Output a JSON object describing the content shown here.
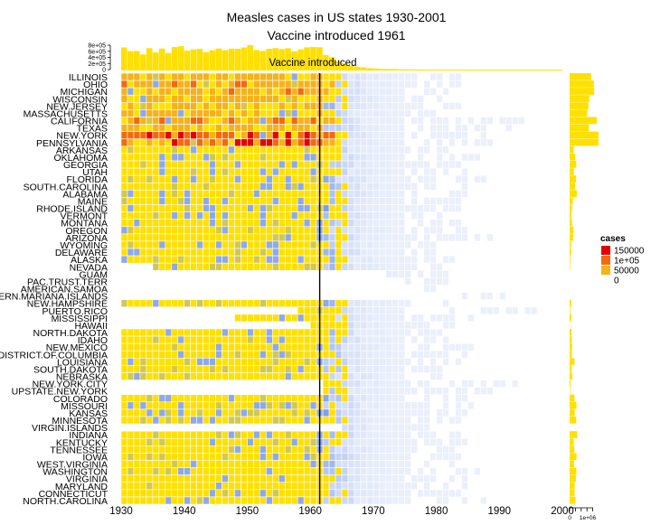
{
  "chart_data": {
    "type": "heatmap",
    "title": "Measles cases in US states 1930-2001",
    "subtitle": "Vaccine introduced 1961",
    "annotation": {
      "text": "Vaccine introduced",
      "year": 1961
    },
    "x_range": [
      1930,
      2000
    ],
    "x_ticks": [
      "1930",
      "1940",
      "1950",
      "1960",
      "1970",
      "1980",
      "1990",
      "2000"
    ],
    "states": [
      "ILLINOIS",
      "OHIO",
      "MICHIGAN",
      "WISCONSIN",
      "NEW.JERSEY",
      "MASSACHUSETTS",
      "CALIFORNIA",
      "TEXAS",
      "NEW.YORK",
      "PENNSYLVANIA",
      "ARKANSAS",
      "OKLAHOMA",
      "GEORGIA",
      "UTAH",
      "FLORIDA",
      "SOUTH.CAROLINA",
      "ALABAMA",
      "MAINE",
      "RHODE.ISLAND",
      "VERMONT",
      "MONTANA",
      "OREGON",
      "ARIZONA",
      "WYOMING",
      "DELAWARE",
      "ALASKA",
      "NEVADA",
      "GUAM",
      "PAC.TRUST.TERR",
      "AMERICAN.SAMOA",
      "NORTHERN.MARIANA.ISLANDS",
      "NEW.HAMPSHIRE",
      "PUERTO.RICO",
      "MISSISSIPPI",
      "HAWAII",
      "NORTH.DAKOTA",
      "IDAHO",
      "NEW.MEXICO",
      "DISTRICT.OF.COLUMBIA",
      "LOUISIANA",
      "SOUTH.DAKOTA",
      "NEBRASKA",
      "NEW.YORK.CITY",
      "UPSTATE.NEW.YORK",
      "COLORADO",
      "MISSOURI",
      "KANSAS",
      "MINNESOTA",
      "VIRGIN.ISLANDS",
      "INDIANA",
      "KENTUCKY",
      "TENNESSEE",
      "IOWA",
      "WEST.VIRGINIA",
      "WASHINGTON",
      "VIRGINIA",
      "MARYLAND",
      "CONNECTICUT",
      "NORTH.CAROLINA"
    ],
    "state_profiles": [
      {
        "start": 1930,
        "end": 1983,
        "peak": 44000
      },
      {
        "start": 1930,
        "end": 1983,
        "peak": 52000
      },
      {
        "start": 1930,
        "end": 1982,
        "peak": 50000
      },
      {
        "start": 1930,
        "end": 1981,
        "peak": 42000
      },
      {
        "start": 1930,
        "end": 1983,
        "peak": 40000
      },
      {
        "start": 1930,
        "end": 1983,
        "peak": 36000
      },
      {
        "start": 1930,
        "end": 1993,
        "peak": 55000
      },
      {
        "start": 1930,
        "end": 1993,
        "peak": 45000
      },
      {
        "start": 1930,
        "end": 1988,
        "peak": 95000
      },
      {
        "start": 1930,
        "end": 1988,
        "peak": 88000
      },
      {
        "start": 1930,
        "end": 1981,
        "peak": 9000
      },
      {
        "start": 1930,
        "end": 1987,
        "peak": 12000
      },
      {
        "start": 1930,
        "end": 1985,
        "peak": 15000
      },
      {
        "start": 1930,
        "end": 1984,
        "peak": 9000
      },
      {
        "start": 1930,
        "end": 1987,
        "peak": 14000
      },
      {
        "start": 1930,
        "end": 1984,
        "peak": 12000
      },
      {
        "start": 1930,
        "end": 1985,
        "peak": 15000
      },
      {
        "start": 1930,
        "end": 1984,
        "peak": 6000
      },
      {
        "start": 1930,
        "end": 1983,
        "peak": 5000
      },
      {
        "start": 1930,
        "end": 1982,
        "peak": 4000
      },
      {
        "start": 1930,
        "end": 1983,
        "peak": 5000
      },
      {
        "start": 1930,
        "end": 1985,
        "peak": 9000
      },
      {
        "start": 1930,
        "end": 1988,
        "peak": 8000
      },
      {
        "start": 1930,
        "end": 1981,
        "peak": 2500
      },
      {
        "start": 1930,
        "end": 1980,
        "peak": 3000
      },
      {
        "start": 1930,
        "end": 1982,
        "peak": 1500
      },
      {
        "start": 1935,
        "end": 1980,
        "peak": 1500
      },
      {
        "start": 1972,
        "end": 1983,
        "peak": 150
      },
      {
        "start": 1975,
        "end": 1982,
        "peak": 100
      },
      {
        "start": 1978,
        "end": 1983,
        "peak": 50
      },
      {
        "start": 1984,
        "end": 1990,
        "peak": 30
      },
      {
        "start": 1930,
        "end": 1982,
        "peak": 4000
      },
      {
        "start": 1958,
        "end": 1995,
        "peak": 8000
      },
      {
        "start": 1948,
        "end": 1985,
        "peak": 9000
      },
      {
        "start": 1960,
        "end": 1984,
        "peak": 4000
      },
      {
        "start": 1930,
        "end": 1980,
        "peak": 4000
      },
      {
        "start": 1930,
        "end": 1982,
        "peak": 5000
      },
      {
        "start": 1930,
        "end": 1985,
        "peak": 6000
      },
      {
        "start": 1930,
        "end": 1985,
        "peak": 5000
      },
      {
        "start": 1930,
        "end": 1984,
        "peak": 10000
      },
      {
        "start": 1930,
        "end": 1981,
        "peak": 4000
      },
      {
        "start": 1930,
        "end": 1980,
        "peak": 7000
      },
      {
        "start": 1962,
        "end": 1992,
        "peak": 25000
      },
      {
        "start": 1962,
        "end": 1988,
        "peak": 20000
      },
      {
        "start": 1930,
        "end": 1984,
        "peak": 10000
      },
      {
        "start": 1930,
        "end": 1985,
        "peak": 18000
      },
      {
        "start": 1930,
        "end": 1984,
        "peak": 10000
      },
      {
        "start": 1930,
        "end": 1983,
        "peak": 14000
      },
      {
        "start": 1965,
        "end": 1978,
        "peak": 1200
      },
      {
        "start": 1930,
        "end": 1986,
        "peak": 16000
      },
      {
        "start": 1930,
        "end": 1984,
        "peak": 10000
      },
      {
        "start": 1930,
        "end": 1984,
        "peak": 12000
      },
      {
        "start": 1930,
        "end": 1983,
        "peak": 14000
      },
      {
        "start": 1930,
        "end": 1982,
        "peak": 10000
      },
      {
        "start": 1930,
        "end": 1986,
        "peak": 16000
      },
      {
        "start": 1930,
        "end": 1985,
        "peak": 14000
      },
      {
        "start": 1930,
        "end": 1984,
        "peak": 12000
      },
      {
        "start": 1930,
        "end": 1985,
        "peak": 10000
      },
      {
        "start": 1930,
        "end": 1987,
        "peak": 15000
      }
    ],
    "yearly_totals_axis": {
      "ticks": [
        "0",
        "2e+05",
        "4e+05",
        "6e+05",
        "8e+05"
      ],
      "max": 800000
    },
    "state_totals_axis": {
      "ticks": [
        "0",
        "1e+06"
      ],
      "max": 1600000
    },
    "legend": {
      "title": "cases",
      "placement": "right",
      "items": [
        {
          "label": "150000",
          "value": 150000,
          "color": "#e60000"
        },
        {
          "label": "1e+05",
          "value": 100000,
          "color": "#f26a0d"
        },
        {
          "label": "50000",
          "value": 50000,
          "color": "#f5b21b"
        },
        {
          "label": "0",
          "value": 0,
          "color": "#ffffff"
        }
      ]
    },
    "colors": {
      "high": "#ffe000",
      "low": "#7a9ae6",
      "grid": "#ffffff",
      "bar": "#ffe000",
      "vaccine_line": "#000000"
    }
  }
}
